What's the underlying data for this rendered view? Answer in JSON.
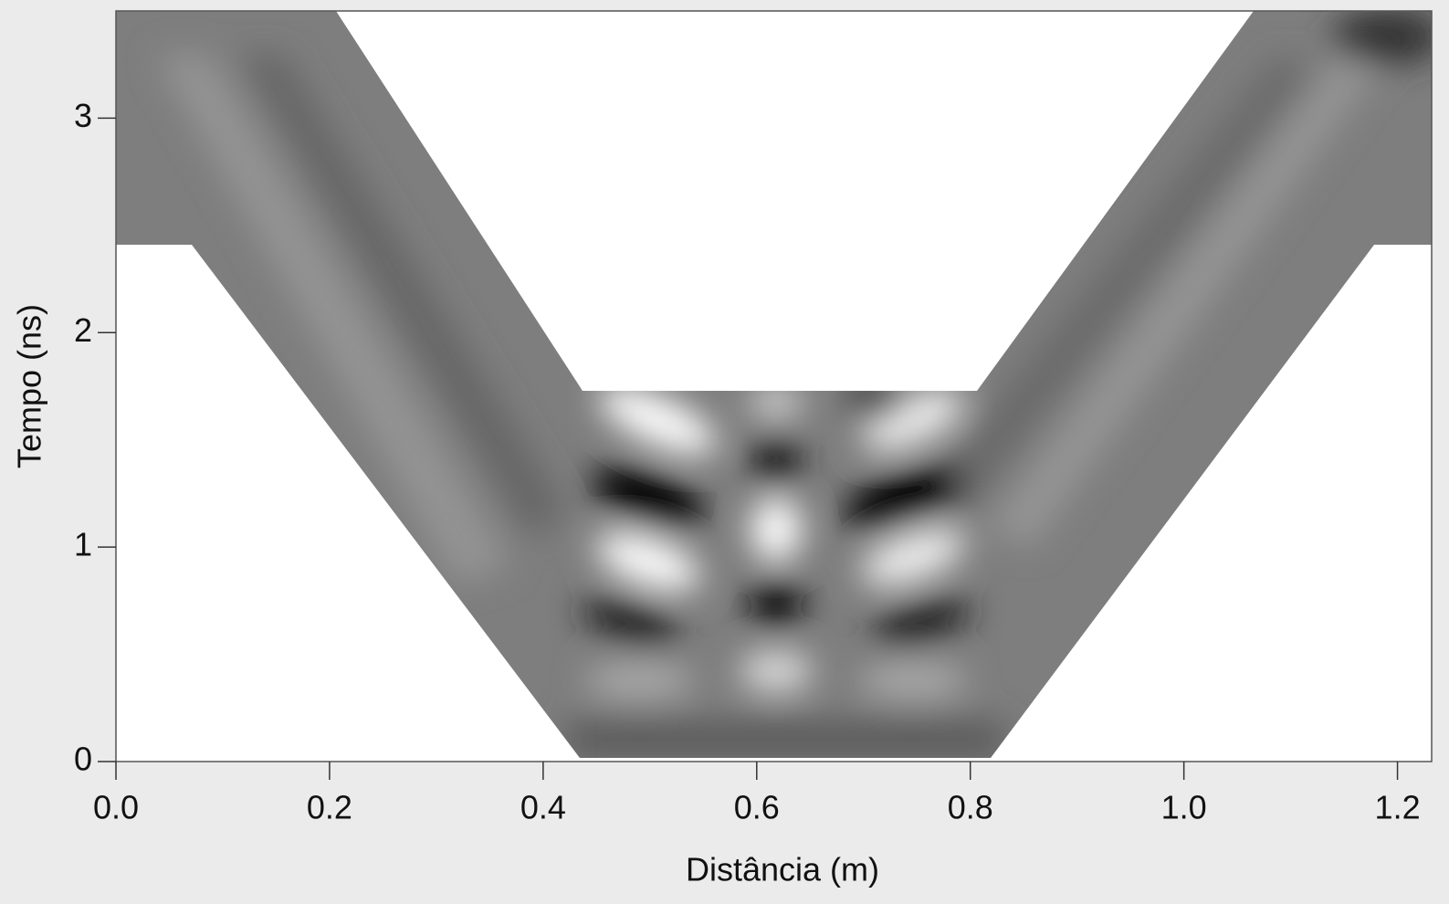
{
  "chart_data": {
    "type": "image",
    "xlabel": "Distância (m)",
    "ylabel": "Tempo (ns)",
    "xlim": [
      0,
      1.232
    ],
    "ylim": [
      0,
      3.5
    ],
    "xticks": [
      {
        "value": 0,
        "label": "0.0"
      },
      0.2,
      0.4,
      0.6,
      0.8,
      {
        "value": 1,
        "label": "1.0"
      },
      1.2
    ],
    "yticks": [
      0,
      1,
      2,
      3
    ],
    "colormap": "gray"
  }
}
